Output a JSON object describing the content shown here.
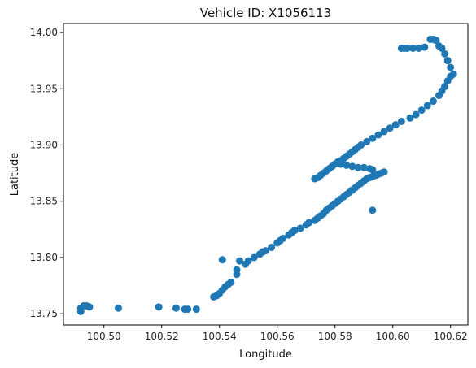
{
  "chart_data": {
    "type": "scatter",
    "title": "Vehicle ID: X1056113",
    "xlabel": "Longitude",
    "ylabel": "Latitude",
    "xlim": [
      100.486,
      100.626
    ],
    "ylim": [
      13.74,
      14.008
    ],
    "xticks": [
      100.5,
      100.52,
      100.54,
      100.56,
      100.58,
      100.6,
      100.62
    ],
    "xtick_labels": [
      "100.50",
      "100.52",
      "100.54",
      "100.56",
      "100.58",
      "100.60",
      "100.62"
    ],
    "yticks": [
      13.75,
      13.8,
      13.85,
      13.9,
      13.95,
      14.0
    ],
    "ytick_labels": [
      "13.75",
      "13.80",
      "13.85",
      "13.90",
      "13.95",
      "14.00"
    ],
    "grid": false,
    "marker_color": "#1f77b4",
    "series": [
      {
        "x": [
          100.492,
          100.492,
          100.493,
          100.494,
          100.495,
          100.505,
          100.519,
          100.525,
          100.528,
          100.529,
          100.532,
          100.538,
          100.539,
          100.54,
          100.541,
          100.542,
          100.543,
          100.544,
          100.541,
          100.546,
          100.547,
          100.546,
          100.549,
          100.55,
          100.552,
          100.554,
          100.555,
          100.556,
          100.558,
          100.56,
          100.561,
          100.562,
          100.564,
          100.565,
          100.566,
          100.568,
          100.57,
          100.571,
          100.573,
          100.574,
          100.575,
          100.576,
          100.577,
          100.578,
          100.579,
          100.58,
          100.581,
          100.582,
          100.583,
          100.584,
          100.585,
          100.586,
          100.587,
          100.588,
          100.589,
          100.59,
          100.591,
          100.592,
          100.593,
          100.594,
          100.595,
          100.596,
          100.597,
          100.593,
          100.573,
          100.574,
          100.575,
          100.576,
          100.577,
          100.578,
          100.579,
          100.58,
          100.581,
          100.582,
          100.583,
          100.584,
          100.585,
          100.586,
          100.587,
          100.588,
          100.589,
          100.591,
          100.593,
          100.595,
          100.597,
          100.599,
          100.601,
          100.603,
          100.606,
          100.608,
          100.61,
          100.612,
          100.614,
          100.616,
          100.617,
          100.582,
          100.584,
          100.586,
          100.588,
          100.59,
          100.592,
          100.593,
          100.618,
          100.619,
          100.62,
          100.621,
          100.62,
          100.619,
          100.618,
          100.617,
          100.616,
          100.615,
          100.614,
          100.613,
          100.611,
          100.609,
          100.607,
          100.605,
          100.604,
          100.603
        ],
        "y": [
          13.755,
          13.752,
          13.757,
          13.757,
          13.756,
          13.755,
          13.756,
          13.755,
          13.754,
          13.754,
          13.754,
          13.765,
          13.766,
          13.768,
          13.771,
          13.774,
          13.776,
          13.778,
          13.798,
          13.785,
          13.797,
          13.789,
          13.794,
          13.797,
          13.8,
          13.803,
          13.805,
          13.806,
          13.809,
          13.813,
          13.815,
          13.817,
          13.82,
          13.822,
          13.824,
          13.826,
          13.829,
          13.831,
          13.833,
          13.835,
          13.837,
          13.839,
          13.842,
          13.844,
          13.846,
          13.848,
          13.85,
          13.852,
          13.854,
          13.856,
          13.858,
          13.86,
          13.862,
          13.864,
          13.866,
          13.868,
          13.87,
          13.871,
          13.872,
          13.873,
          13.874,
          13.875,
          13.876,
          13.842,
          13.87,
          13.871,
          13.873,
          13.875,
          13.877,
          13.879,
          13.881,
          13.883,
          13.885,
          13.886,
          13.888,
          13.89,
          13.892,
          13.894,
          13.896,
          13.898,
          13.9,
          13.903,
          13.906,
          13.909,
          13.912,
          13.915,
          13.918,
          13.921,
          13.924,
          13.927,
          13.931,
          13.935,
          13.939,
          13.944,
          13.948,
          13.883,
          13.882,
          13.881,
          13.88,
          13.88,
          13.879,
          13.878,
          13.952,
          13.957,
          13.961,
          13.963,
          13.969,
          13.975,
          13.981,
          13.986,
          13.988,
          13.993,
          13.994,
          13.994,
          13.987,
          13.986,
          13.986,
          13.986,
          13.986,
          13.986
        ]
      }
    ]
  }
}
